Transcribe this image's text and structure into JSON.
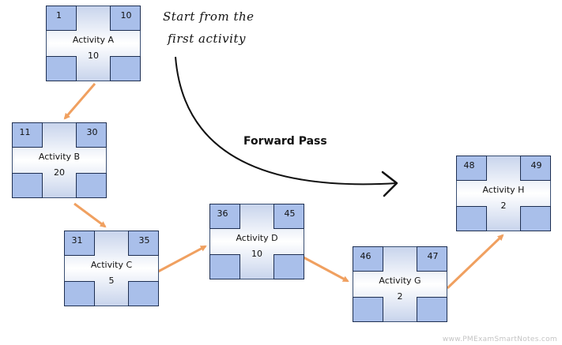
{
  "annotation": {
    "start_line1": "Start from the",
    "start_line2": "first activity",
    "forward_pass": "Forward Pass"
  },
  "activities": [
    {
      "id": "a",
      "name": "Activity A",
      "duration": "10",
      "early_start": "1",
      "early_finish": "10"
    },
    {
      "id": "b",
      "name": "Activity B",
      "duration": "20",
      "early_start": "11",
      "early_finish": "30"
    },
    {
      "id": "c",
      "name": "Activity C",
      "duration": "5",
      "early_start": "31",
      "early_finish": "35"
    },
    {
      "id": "d",
      "name": "Activity D",
      "duration": "10",
      "early_start": "36",
      "early_finish": "45"
    },
    {
      "id": "g",
      "name": "Activity G",
      "duration": "2",
      "early_start": "46",
      "early_finish": "47"
    },
    {
      "id": "h",
      "name": "Activity H",
      "duration": "2",
      "early_start": "48",
      "early_finish": "49"
    }
  ],
  "colors": {
    "connector": "#f0a060",
    "node_corner": "#a9bfea",
    "node_border": "#1e2f52",
    "curve": "#111111"
  },
  "watermark": "www.PMExamSmartNotes.com"
}
